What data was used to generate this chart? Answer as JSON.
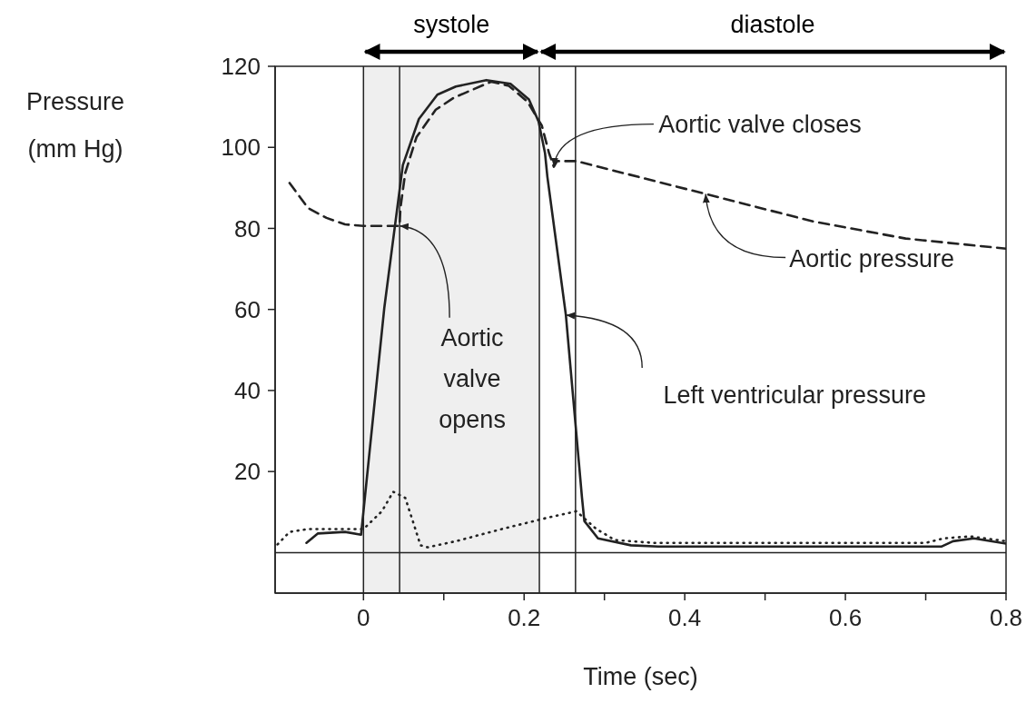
{
  "chart_data": {
    "type": "line",
    "xlabel": "Time (sec)",
    "ylabel": "Pressure (mm Hg)",
    "xlim": [
      -0.11,
      0.8
    ],
    "ylim": [
      -10,
      120
    ],
    "xticks": [
      0,
      {
        "value": 0.1,
        "label": null
      },
      {
        "value": 0.2,
        "label": "0.2"
      },
      {
        "value": 0.3,
        "label": null
      },
      {
        "value": 0.4,
        "label": "0.4"
      },
      {
        "value": 0.5,
        "label": null
      },
      {
        "value": 0.6,
        "label": "0.6"
      },
      {
        "value": 0.7,
        "label": null
      },
      {
        "value": 0.8,
        "label": "0.8"
      }
    ],
    "yticks": [
      20,
      40,
      60,
      80,
      100,
      120
    ],
    "series": [
      {
        "type": "line",
        "line_style": "solid",
        "color": "#222222",
        "x": [
          -0.071,
          -0.057,
          -0.023,
          -0.003,
          0.026,
          0.049,
          0.069,
          0.092,
          0.115,
          0.153,
          0.183,
          0.206,
          0.218,
          0.226,
          0.229,
          0.252,
          0.272,
          0.275,
          0.292,
          0.333,
          0.367,
          0.72,
          0.734,
          0.76,
          0.8
        ],
        "values": [
          2.4,
          4.7,
          5.1,
          4.4,
          60.5,
          95.6,
          107,
          113,
          115,
          116.6,
          115.7,
          111.8,
          106.4,
          98.6,
          92.7,
          58.6,
          13.7,
          7.8,
          3.5,
          1.8,
          1.5,
          1.5,
          2.8,
          3.5,
          2.2
        ]
      },
      {
        "type": "line",
        "line_style": "dashed",
        "color": "#222222",
        "x": [
          -0.092,
          -0.069,
          -0.046,
          -0.023,
          0,
          0.045,
          0.046,
          0.052,
          0.066,
          0.09,
          0.113,
          0.159,
          0.181,
          0.204,
          0.222,
          0.231,
          0.237,
          0.241,
          0.265,
          0.426,
          0.56,
          0.675,
          0.8
        ],
        "values": [
          91.2,
          85,
          82.6,
          81,
          80.6,
          80.6,
          85,
          93.7,
          102.5,
          109.3,
          112.3,
          116.2,
          115.2,
          111.3,
          105.4,
          98.6,
          95.2,
          96.6,
          96.6,
          88.5,
          81.7,
          77.5,
          75
        ]
      },
      {
        "type": "line",
        "line_style": "dotted",
        "color": "#222222",
        "x": [
          -0.107,
          -0.092,
          -0.069,
          0,
          0.023,
          0.037,
          0.052,
          0.063,
          0.071,
          0.08,
          0.115,
          0.172,
          0.229,
          0.265,
          0.29,
          0.313,
          0.36,
          0.7,
          0.722,
          0.755,
          0.8
        ],
        "values": [
          2,
          5.1,
          5.8,
          5.8,
          10.2,
          15,
          13.5,
          6.8,
          1.8,
          1.3,
          2.8,
          5.8,
          8.6,
          10.2,
          5.8,
          3.1,
          2.4,
          2.4,
          3.5,
          4,
          2.8
        ]
      }
    ],
    "ref_lines": [
      {
        "axis": "x",
        "value": 0,
        "color": "#222222"
      },
      {
        "axis": "x",
        "value": 0.045,
        "color": "#222222"
      },
      {
        "axis": "x",
        "value": 0.219,
        "color": "#222222"
      },
      {
        "axis": "x",
        "value": 0.264,
        "color": "#222222"
      },
      {
        "axis": "y",
        "value": 0,
        "color": "#222222"
      }
    ],
    "bands": [
      {
        "axis": "x",
        "from": 0,
        "to": 0.219,
        "label": "systole",
        "color": "#efefef"
      }
    ],
    "annotations": [
      {
        "text": "Aortic valve closes",
        "x": 0.237,
        "y": 95.2
      },
      {
        "text": "Aortic pressure",
        "x": 0.426,
        "y": 88.5
      },
      {
        "text": "Aortic valve opens",
        "x": 0.045,
        "y": 80.6
      },
      {
        "text": "Left ventricular pressure",
        "x": 0.252,
        "y": 58.6
      },
      "diastole"
    ]
  }
}
